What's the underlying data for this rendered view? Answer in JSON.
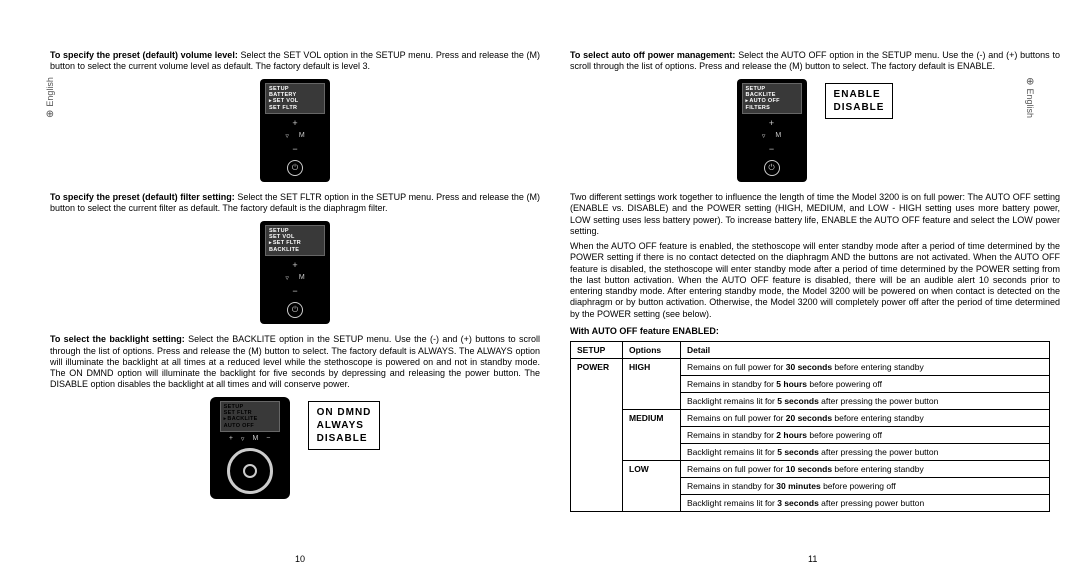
{
  "sideTab": "English",
  "left": {
    "para1": {
      "bold": "To specify the preset (default) volume level:",
      "rest": " Select the SET VOL option in the SETUP menu. Press and release the (M) button to select the current volume level as default. The factory default is level 3."
    },
    "lcd1": {
      "l1": "SETUP",
      "l2": "BATTERY",
      "sel": "SET VOL",
      "l4": "SET FLTR"
    },
    "para2": {
      "bold": "To specify the preset (default) filter setting:",
      "rest": " Select the SET FLTR option in the SETUP menu. Press and release the (M) button to select the current filter as default. The factory default is the diaphragm filter."
    },
    "lcd2": {
      "l1": "SETUP",
      "l2": "SET VOL",
      "sel": "SET FLTR",
      "l4": "BACKLITE"
    },
    "para3": {
      "bold": "To select the backlight setting:",
      "rest": " Select the BACKLITE option in the SETUP menu. Use the (-) and (+) buttons to scroll through the list of options. Press and release the (M) button to select. The factory default is ALWAYS. The ALWAYS option will illuminate the backlight at all times at a reduced level while the stethoscope is powered on and not in standby mode. The ON DMND option will illuminate the backlight for five seconds by depressing and releasing the power button. The DISABLE option disables the backlight at all times and will conserve power."
    },
    "lcd3": {
      "l1": "SETUP",
      "l2": "SET FLTR",
      "sel": "BACKLITE",
      "l4": "AUTO OFF"
    },
    "opts3": [
      "ON DMND",
      "ALWAYS",
      "DISABLE"
    ],
    "pageNum": "10"
  },
  "right": {
    "para1": {
      "bold": "To select auto off power management:",
      "rest": " Select the AUTO OFF option in the SETUP menu. Use the (-) and (+) buttons to scroll through the list of options. Press and release the (M) button to select. The factory default is ENABLE."
    },
    "lcd1": {
      "l1": "SETUP",
      "l2": "BACKLITE",
      "sel": "AUTO OFF",
      "l4": "FILTERS"
    },
    "opts1": [
      "ENABLE",
      "DISABLE"
    ],
    "para2": "Two different settings work together to influence the length of time the Model 3200 is on full power: The AUTO OFF setting (ENABLE vs. DISABLE) and the POWER setting (HIGH, MEDIUM, and LOW - HIGH setting uses more battery power, LOW setting uses less battery power). To increase battery life, ENABLE the AUTO OFF feature and select the LOW power setting.",
    "para3": "When the AUTO OFF feature is enabled, the stethoscope will enter standby mode after a period of time determined by the POWER setting if there is no contact detected on the diaphragm AND the buttons are not activated. When the AUTO OFF feature is disabled, the stethoscope will enter standby mode after a period of time determined by the POWER setting from the last button activation. When the AUTO OFF feature is disabled, there will be an audible alert 10 seconds prior to entering standby mode. After entering standby mode, the Model 3200 will be powered on when contact is detected on the diaphragm or by button activation. Otherwise, the Model 3200 will completely power off after the period of time determined by the POWER setting (see below).",
    "tableTitle": "With AUTO OFF feature ENABLED:",
    "table": {
      "headers": [
        "SETUP",
        "Options",
        "Detail"
      ],
      "setupCell": "POWER",
      "groups": [
        {
          "opt": "HIGH",
          "rows": [
            {
              "t": [
                "Remains on full power for ",
                "30 seconds",
                " before entering standby"
              ]
            },
            {
              "t": [
                "Remains in standby for ",
                "5 hours",
                " before powering off"
              ]
            },
            {
              "t": [
                "Backlight remains lit for ",
                "5 seconds",
                " after pressing the power button"
              ]
            }
          ]
        },
        {
          "opt": "MEDIUM",
          "rows": [
            {
              "t": [
                "Remains on full power for ",
                "20 seconds",
                " before entering standby"
              ]
            },
            {
              "t": [
                "Remains in standby for ",
                "2 hours",
                " before powering off"
              ]
            },
            {
              "t": [
                "Backlight remains lit for ",
                "5 seconds",
                " after pressing the power button"
              ]
            }
          ]
        },
        {
          "opt": "LOW",
          "rows": [
            {
              "t": [
                "Remains on full power for ",
                "10 seconds",
                " before entering standby"
              ]
            },
            {
              "t": [
                "Remains in standby for ",
                "30 minutes",
                " before powering off"
              ]
            },
            {
              "t": [
                "Backlight remains lit for ",
                "3 seconds",
                " after pressing power button"
              ]
            }
          ]
        }
      ]
    },
    "pageNum": "11"
  },
  "deviceButtons": {
    "minus": "−",
    "filter": "▿",
    "m": "M",
    "plus": "+",
    "power": "⏻"
  }
}
